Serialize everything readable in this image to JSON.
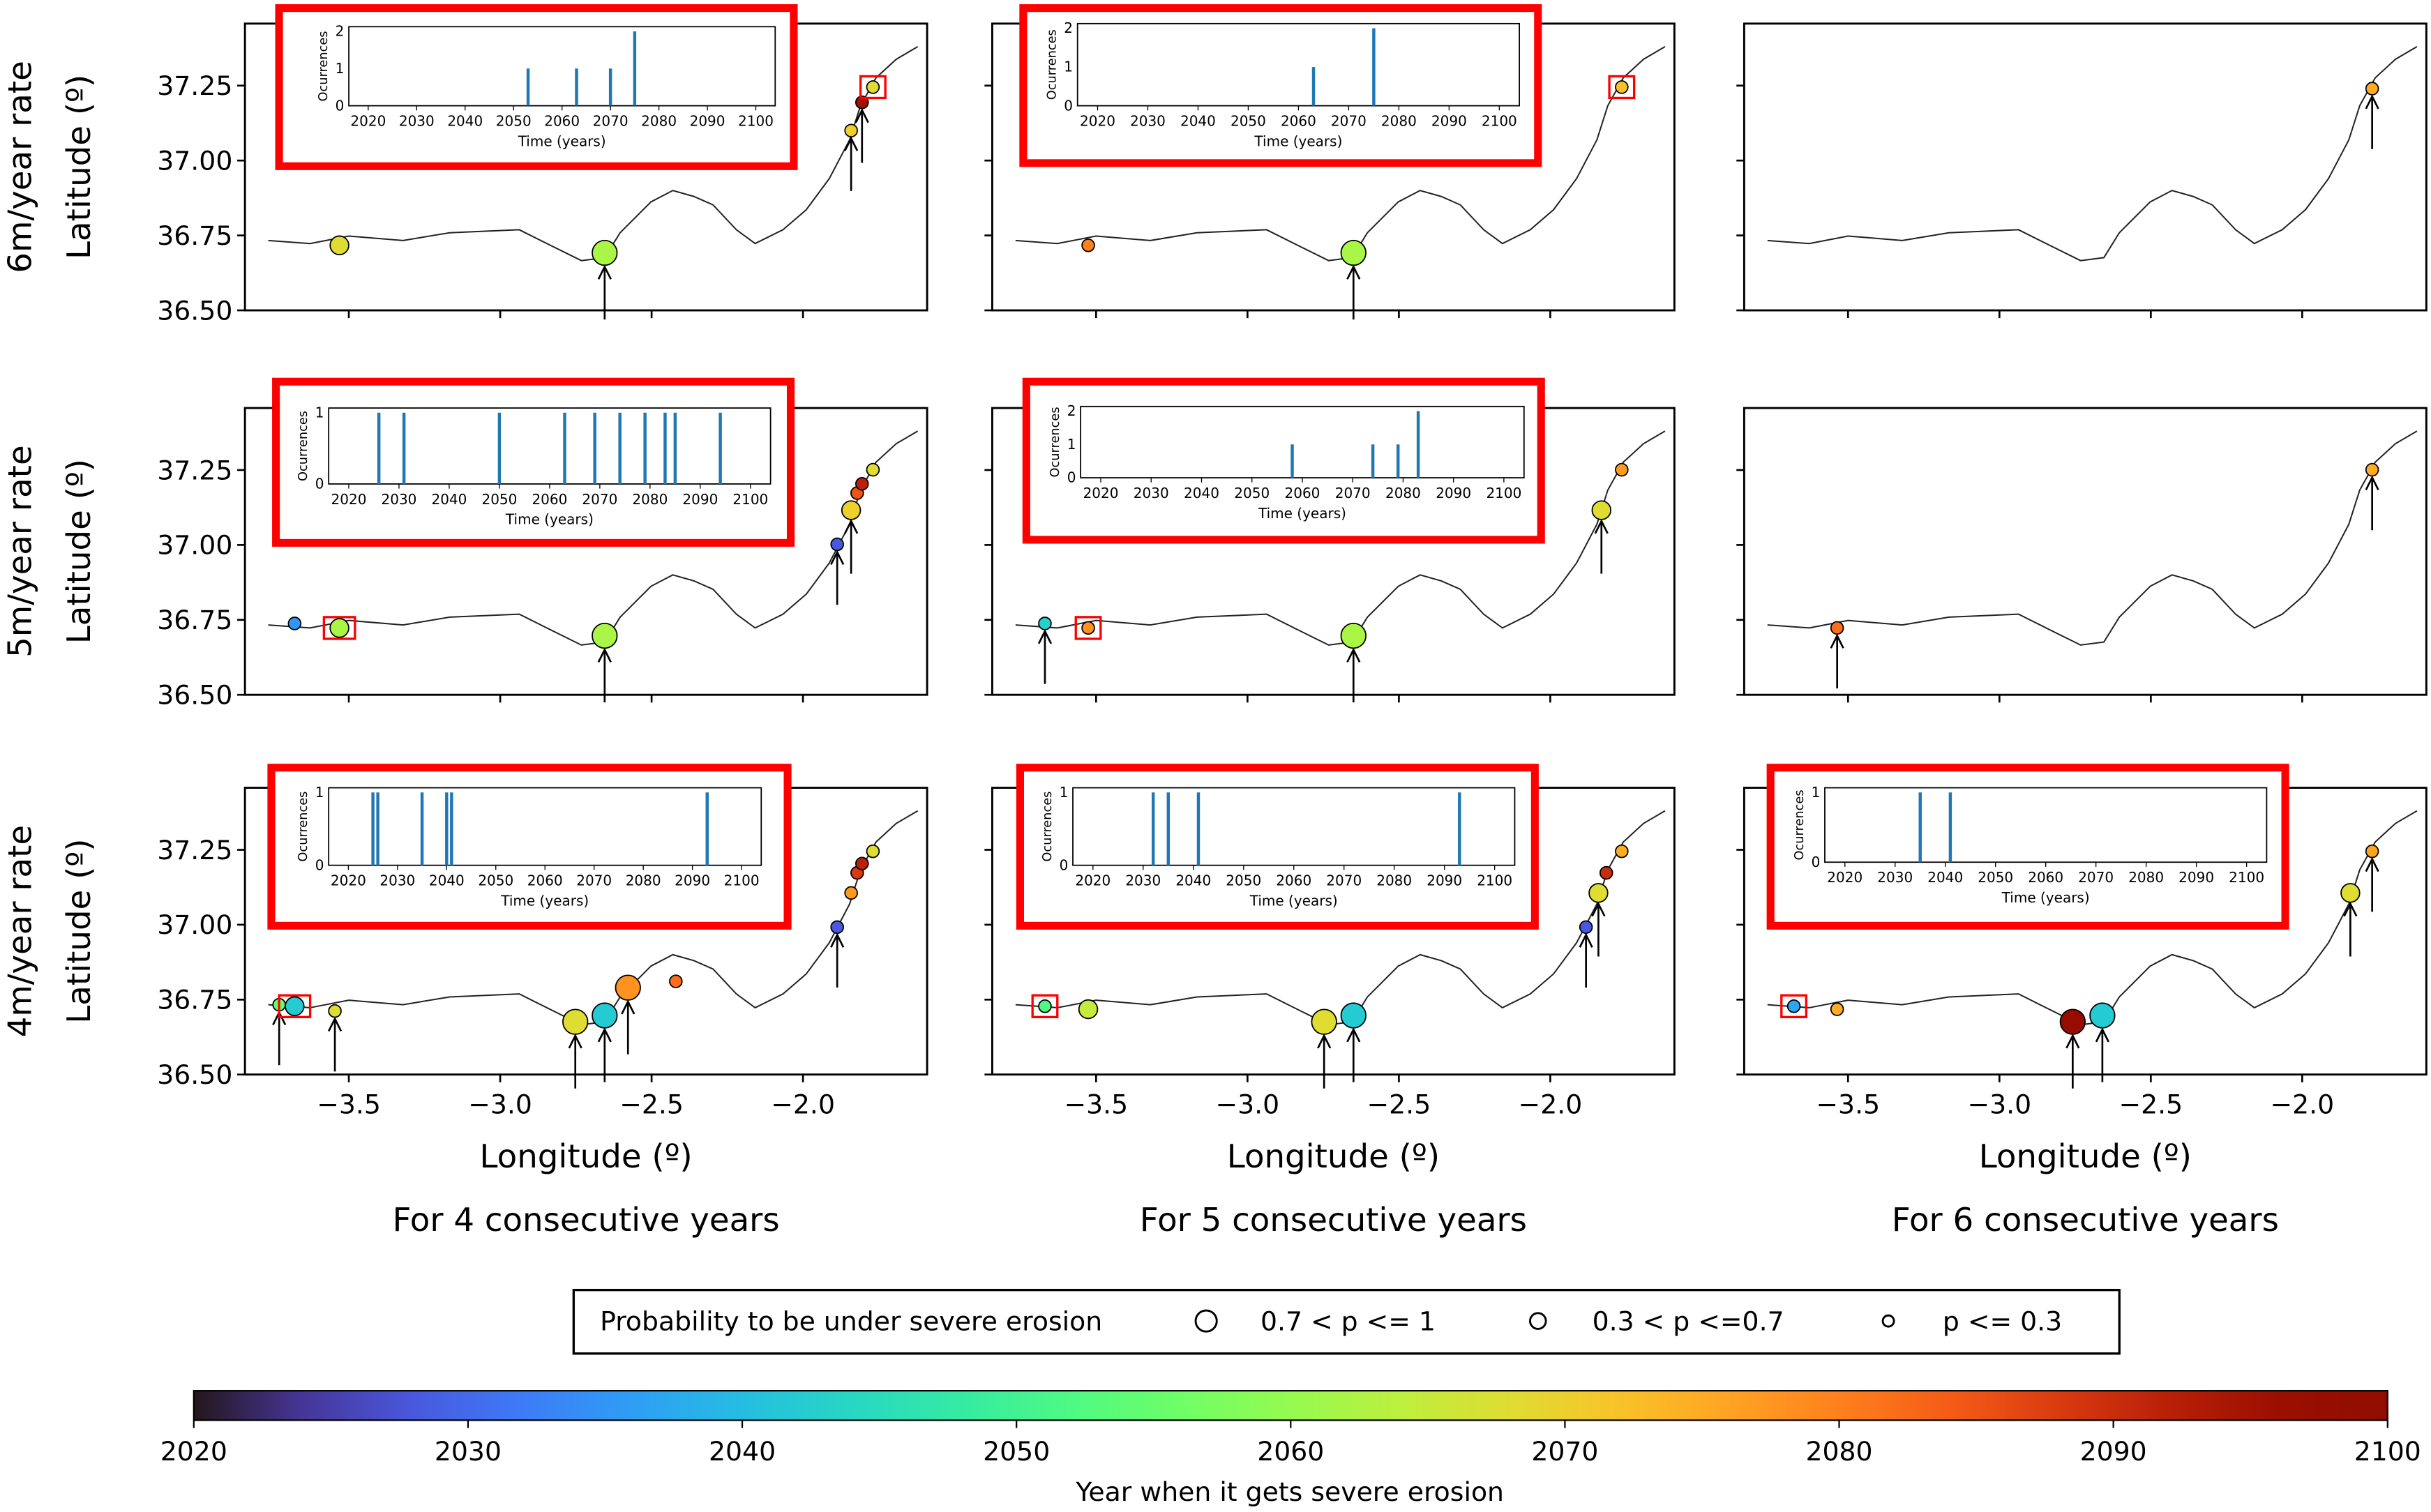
{
  "chart_data": {
    "type": "scatter",
    "title": "",
    "xlabel": "Longitude (º)",
    "ylabel": "Latitude (º)",
    "xlim": [
      -3.843,
      -1.59
    ],
    "ylim": [
      36.5,
      37.457
    ],
    "xticks": [
      -3.5,
      -3.0,
      -2.5,
      -2.0
    ],
    "xtick_labels": [
      "−3.5",
      "−3.0",
      "−2.5",
      "−2.0"
    ],
    "yticks": [
      36.5,
      36.75,
      37.0,
      37.25
    ],
    "ytick_labels": [
      "36.50",
      "36.75",
      "37.00",
      "37.25"
    ],
    "row_labels": [
      "6m/year rate",
      "5m/year rate",
      "4m/year rate"
    ],
    "column_titles": [
      "For 4 consecutive years",
      "For 5 consecutive years",
      "For 6 consecutive years"
    ],
    "coastline": [
      [
        -3.766,
        36.733
      ],
      [
        -3.628,
        36.723
      ],
      [
        -3.5,
        36.748
      ],
      [
        -3.321,
        36.733
      ],
      [
        -3.167,
        36.759
      ],
      [
        -2.937,
        36.769
      ],
      [
        -2.834,
        36.717
      ],
      [
        -2.732,
        36.666
      ],
      [
        -2.655,
        36.676
      ],
      [
        -2.604,
        36.759
      ],
      [
        -2.502,
        36.862
      ],
      [
        -2.43,
        36.9
      ],
      [
        -2.36,
        36.88
      ],
      [
        -2.297,
        36.852
      ],
      [
        -2.22,
        36.769
      ],
      [
        -2.158,
        36.723
      ],
      [
        -2.066,
        36.769
      ],
      [
        -1.989,
        36.836
      ],
      [
        -1.913,
        36.94
      ],
      [
        -1.846,
        37.069
      ],
      [
        -1.81,
        37.183
      ],
      [
        -1.759,
        37.276
      ],
      [
        -1.692,
        37.338
      ],
      [
        -1.621,
        37.38
      ]
    ],
    "inset": {
      "xlabel": "Time (years)",
      "ylabel": "Ocurrences",
      "xlim": [
        2016,
        2104
      ],
      "xticks": [
        2020,
        2030,
        2040,
        2050,
        2060,
        2070,
        2080,
        2090,
        2100
      ]
    },
    "panels": [
      {
        "row": 0,
        "col": 0,
        "points": [
          {
            "lon": -3.531,
            "lat": 36.717,
            "year": 2068,
            "size": "mid"
          },
          {
            "lon": -2.655,
            "lat": 36.692,
            "year": 2062,
            "size": "large",
            "arrow": true
          },
          {
            "lon": -1.841,
            "lat": 37.1,
            "year": 2070,
            "size": "small",
            "arrow": true
          },
          {
            "lon": -1.805,
            "lat": 37.194,
            "year": 2095,
            "size": "small",
            "arrow": true
          },
          {
            "lon": -1.769,
            "lat": 37.245,
            "year": 2068,
            "size": "small",
            "box": true
          }
        ],
        "inset": {
          "yticks": [
            0,
            1,
            2
          ],
          "bars": [
            [
              2053,
              1
            ],
            [
              2063,
              1
            ],
            [
              2070,
              1
            ],
            [
              2075,
              2
            ]
          ]
        }
      },
      {
        "row": 0,
        "col": 1,
        "points": [
          {
            "lon": -3.526,
            "lat": 36.717,
            "year": 2080,
            "size": "small"
          },
          {
            "lon": -2.65,
            "lat": 36.692,
            "year": 2062,
            "size": "large",
            "arrow": true
          },
          {
            "lon": -1.764,
            "lat": 37.245,
            "year": 2072,
            "size": "small",
            "box": true
          }
        ],
        "inset": {
          "yticks": [
            0,
            1,
            2
          ],
          "bars": [
            [
              2063,
              1
            ],
            [
              2075,
              2
            ]
          ]
        }
      },
      {
        "row": 0,
        "col": 2,
        "points": [
          {
            "lon": -1.769,
            "lat": 37.24,
            "year": 2075,
            "size": "small",
            "arrow": true
          }
        ]
      },
      {
        "row": 1,
        "col": 0,
        "points": [
          {
            "lon": -3.679,
            "lat": 36.738,
            "year": 2035,
            "size": "small"
          },
          {
            "lon": -3.531,
            "lat": 36.723,
            "year": 2062,
            "size": "mid",
            "box": true
          },
          {
            "lon": -2.655,
            "lat": 36.697,
            "year": 2062,
            "size": "large",
            "arrow": true
          },
          {
            "lon": -1.887,
            "lat": 37.002,
            "year": 2028,
            "size": "small",
            "arrow": true
          },
          {
            "lon": -1.841,
            "lat": 37.116,
            "year": 2070,
            "size": "mid",
            "arrow": true
          },
          {
            "lon": -1.821,
            "lat": 37.173,
            "year": 2085,
            "size": "small"
          },
          {
            "lon": -1.805,
            "lat": 37.204,
            "year": 2092,
            "size": "small"
          },
          {
            "lon": -1.769,
            "lat": 37.251,
            "year": 2068,
            "size": "small"
          }
        ],
        "inset": {
          "yticks": [
            0,
            1
          ],
          "bars": [
            [
              2026,
              1
            ],
            [
              2031,
              1
            ],
            [
              2050,
              1
            ],
            [
              2063,
              1
            ],
            [
              2069,
              1
            ],
            [
              2074,
              1
            ],
            [
              2079,
              1
            ],
            [
              2083,
              1
            ],
            [
              2085,
              1
            ],
            [
              2094,
              1
            ]
          ]
        }
      },
      {
        "row": 1,
        "col": 1,
        "points": [
          {
            "lon": -3.669,
            "lat": 36.738,
            "year": 2043,
            "size": "small",
            "arrow": true
          },
          {
            "lon": -3.526,
            "lat": 36.723,
            "year": 2078,
            "size": "small",
            "box": true
          },
          {
            "lon": -2.65,
            "lat": 36.697,
            "year": 2062,
            "size": "large",
            "arrow": true
          },
          {
            "lon": -1.831,
            "lat": 37.116,
            "year": 2068,
            "size": "mid",
            "arrow": true
          },
          {
            "lon": -1.764,
            "lat": 37.251,
            "year": 2077,
            "size": "small"
          }
        ],
        "inset": {
          "yticks": [
            0,
            1,
            2
          ],
          "bars": [
            [
              2058,
              1
            ],
            [
              2074,
              1
            ],
            [
              2079,
              1
            ],
            [
              2083,
              2
            ]
          ]
        }
      },
      {
        "row": 1,
        "col": 2,
        "points": [
          {
            "lon": -3.536,
            "lat": 36.723,
            "year": 2082,
            "size": "small",
            "arrow": true
          },
          {
            "lon": -1.769,
            "lat": 37.251,
            "year": 2075,
            "size": "small",
            "arrow": true
          }
        ]
      },
      {
        "row": 2,
        "col": 0,
        "points": [
          {
            "lon": -3.73,
            "lat": 36.733,
            "year": 2055,
            "size": "small",
            "arrow": true
          },
          {
            "lon": -3.679,
            "lat": 36.728,
            "year": 2042,
            "size": "mid",
            "box": true
          },
          {
            "lon": -3.546,
            "lat": 36.712,
            "year": 2068,
            "size": "small",
            "arrow": true
          },
          {
            "lon": -2.752,
            "lat": 36.676,
            "year": 2068,
            "size": "large",
            "arrow": true
          },
          {
            "lon": -2.655,
            "lat": 36.697,
            "year": 2042,
            "size": "large",
            "arrow": true
          },
          {
            "lon": -2.578,
            "lat": 36.79,
            "year": 2078,
            "size": "large",
            "arrow": true
          },
          {
            "lon": -2.42,
            "lat": 36.811,
            "year": 2082,
            "size": "small"
          },
          {
            "lon": -1.887,
            "lat": 36.992,
            "year": 2028,
            "size": "small",
            "arrow": true
          },
          {
            "lon": -1.841,
            "lat": 37.106,
            "year": 2077,
            "size": "small"
          },
          {
            "lon": -1.821,
            "lat": 37.173,
            "year": 2088,
            "size": "small"
          },
          {
            "lon": -1.805,
            "lat": 37.204,
            "year": 2092,
            "size": "small"
          },
          {
            "lon": -1.769,
            "lat": 37.245,
            "year": 2068,
            "size": "small"
          }
        ],
        "inset": {
          "yticks": [
            0,
            1
          ],
          "bars": [
            [
              2025,
              1
            ],
            [
              2026,
              1
            ],
            [
              2035,
              1
            ],
            [
              2040,
              1
            ],
            [
              2041,
              1
            ],
            [
              2093,
              1
            ]
          ]
        }
      },
      {
        "row": 2,
        "col": 1,
        "points": [
          {
            "lon": -3.669,
            "lat": 36.728,
            "year": 2052,
            "size": "small",
            "box": true
          },
          {
            "lon": -3.526,
            "lat": 36.718,
            "year": 2065,
            "size": "mid"
          },
          {
            "lon": -2.747,
            "lat": 36.676,
            "year": 2068,
            "size": "large",
            "arrow": true
          },
          {
            "lon": -2.65,
            "lat": 36.697,
            "year": 2042,
            "size": "large",
            "arrow": true
          },
          {
            "lon": -1.882,
            "lat": 36.992,
            "year": 2028,
            "size": "small",
            "arrow": true
          },
          {
            "lon": -1.841,
            "lat": 37.106,
            "year": 2068,
            "size": "mid",
            "arrow": true
          },
          {
            "lon": -1.815,
            "lat": 37.173,
            "year": 2090,
            "size": "small"
          },
          {
            "lon": -1.764,
            "lat": 37.245,
            "year": 2075,
            "size": "small"
          }
        ],
        "inset": {
          "yticks": [
            0,
            1
          ],
          "bars": [
            [
              2032,
              1
            ],
            [
              2035,
              1
            ],
            [
              2041,
              1
            ],
            [
              2093,
              1
            ]
          ]
        }
      },
      {
        "row": 2,
        "col": 2,
        "points": [
          {
            "lon": -3.679,
            "lat": 36.728,
            "year": 2037,
            "size": "small",
            "box": true
          },
          {
            "lon": -3.536,
            "lat": 36.718,
            "year": 2075,
            "size": "small"
          },
          {
            "lon": -2.758,
            "lat": 36.676,
            "year": 2097,
            "size": "large",
            "arrow": true
          },
          {
            "lon": -2.66,
            "lat": 36.697,
            "year": 2042,
            "size": "large",
            "arrow": true
          },
          {
            "lon": -1.841,
            "lat": 37.106,
            "year": 2068,
            "size": "mid",
            "arrow": true
          },
          {
            "lon": -1.769,
            "lat": 37.245,
            "year": 2076,
            "size": "small",
            "arrow": true
          }
        ],
        "inset": {
          "yticks": [
            0,
            1
          ],
          "bars": [
            [
              2035,
              1
            ],
            [
              2041,
              1
            ]
          ]
        }
      }
    ],
    "legend": {
      "title": "Probability to be under severe erosion",
      "entries": [
        {
          "label": "0.7 < p <= 1",
          "size": "large"
        },
        {
          "label": "0.3 < p <=0.7",
          "size": "mid"
        },
        {
          "label": "p <= 0.3",
          "size": "small"
        }
      ],
      "placement": "bottom-center"
    },
    "colorbar": {
      "colormap": "turbo",
      "range": [
        2020,
        2100
      ],
      "ticks": [
        2020,
        2030,
        2040,
        2050,
        2060,
        2070,
        2080,
        2090,
        2100
      ],
      "label": "Year when it gets severe erosion"
    },
    "colors": {
      "highlight": "#ff0000",
      "bar": "#1f77b4"
    }
  }
}
